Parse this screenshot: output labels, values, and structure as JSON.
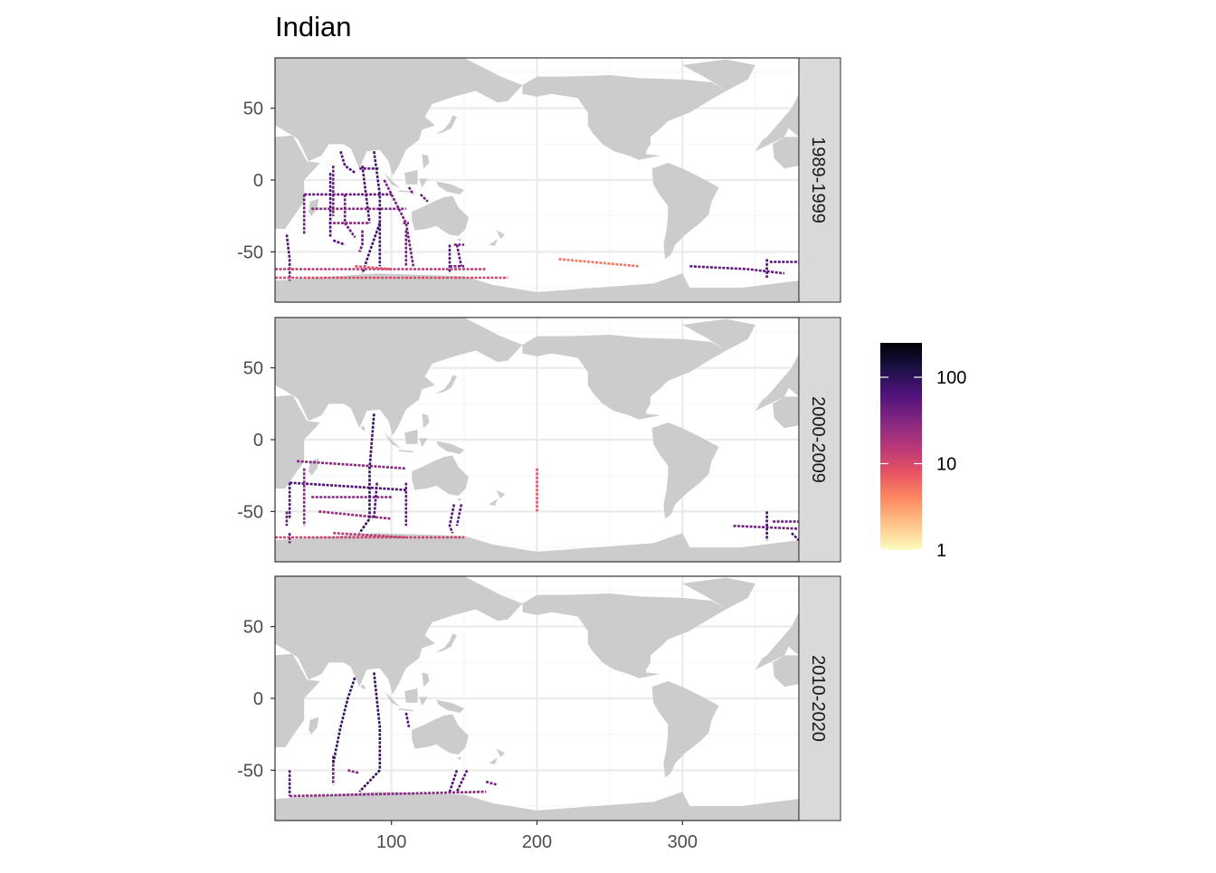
{
  "title": "Indian",
  "colors": {
    "land": "#cccccc",
    "grid_major": "#ebebeb",
    "strip_bg": "#d9d9d9",
    "panel_border": "#333333",
    "tick_text": "#4d4d4d",
    "scale": [
      "#000004",
      "#1d1147",
      "#51127c",
      "#832681",
      "#b73779",
      "#e75263",
      "#fc8961",
      "#fec488",
      "#fcfdbf"
    ]
  },
  "chart_data": {
    "type": "heatmap",
    "title": "Indian",
    "xlim": [
      20,
      380
    ],
    "ylim": [
      -85,
      85
    ],
    "x_ticks": [
      100,
      200,
      300
    ],
    "x_tick_labels": [
      "100",
      "200",
      "300"
    ],
    "y_ticks": [
      50,
      0,
      -50
    ],
    "y_tick_labels": [
      "50",
      "0",
      "-50"
    ],
    "facets": [
      "1989-1999",
      "2000-2009",
      "2010-2020"
    ],
    "legend": {
      "position": "right",
      "scale": "log",
      "range": [
        1,
        250
      ],
      "ticks": [
        100,
        10,
        1
      ],
      "tick_labels": [
        "100",
        "10",
        "1"
      ]
    },
    "tracks": [
      [
        {
          "points": [
            [
              30,
              -55
            ],
            [
              30,
              -70
            ]
          ],
          "value": 60
        },
        {
          "points": [
            [
              28,
              -38
            ],
            [
              30,
              -55
            ]
          ],
          "value": 60
        },
        {
          "points": [
            [
              40,
              -10
            ],
            [
              40,
              -38
            ]
          ],
          "value": 40
        },
        {
          "points": [
            [
              40,
              -10
            ],
            [
              100,
              -10
            ]
          ],
          "value": 50
        },
        {
          "points": [
            [
              45,
              -20
            ],
            [
              110,
              -20
            ]
          ],
          "value": 30
        },
        {
          "points": [
            [
              57,
              -30
            ],
            [
              85,
              -30
            ]
          ],
          "value": 25
        },
        {
          "points": [
            [
              58,
              5
            ],
            [
              58,
              -40
            ]
          ],
          "value": 70
        },
        {
          "points": [
            [
              60,
              10
            ],
            [
              60,
              -25
            ]
          ],
          "value": 40
        },
        {
          "points": [
            [
              65,
              20
            ],
            [
              68,
              10
            ],
            [
              75,
              5
            ]
          ],
          "value": 60
        },
        {
          "points": [
            [
              68,
              -10
            ],
            [
              68,
              -30
            ],
            [
              75,
              -40
            ]
          ],
          "value": 40
        },
        {
          "points": [
            [
              80,
              -35
            ],
            [
              80,
              -45
            ],
            [
              78,
              -50
            ]
          ],
          "value": 50
        },
        {
          "points": [
            [
              60,
              -42
            ],
            [
              68,
              -45
            ]
          ],
          "value": 60
        },
        {
          "points": [
            [
              78,
              8
            ],
            [
              92,
              8
            ]
          ],
          "value": 50
        },
        {
          "points": [
            [
              80,
              10
            ],
            [
              85,
              -30
            ]
          ],
          "value": 70
        },
        {
          "points": [
            [
              88,
              20
            ],
            [
              92,
              -10
            ],
            [
              92,
              -60
            ]
          ],
          "value": 80
        },
        {
          "points": [
            [
              92,
              -30
            ],
            [
              85,
              -50
            ],
            [
              80,
              -65
            ]
          ],
          "value": 80
        },
        {
          "points": [
            [
              95,
              0
            ],
            [
              110,
              -30
            ],
            [
              115,
              -60
            ]
          ],
          "value": 40
        },
        {
          "points": [
            [
              110,
              -35
            ],
            [
              110,
              -60
            ]
          ],
          "value": 40
        },
        {
          "points": [
            [
              108,
              -30
            ],
            [
              112,
              -30
            ]
          ],
          "value": 30
        },
        {
          "points": [
            [
              112,
              -5
            ],
            [
              115,
              -10
            ]
          ],
          "value": 40
        },
        {
          "points": [
            [
              120,
              -10
            ],
            [
              125,
              -15
            ]
          ],
          "value": 40
        },
        {
          "points": [
            [
              140,
              -45
            ],
            [
              140,
              -65
            ]
          ],
          "value": 60
        },
        {
          "points": [
            [
              145,
              -45
            ],
            [
              148,
              -60
            ]
          ],
          "value": 50
        },
        {
          "points": [
            [
              143,
              -45
            ],
            [
              150,
              -45
            ]
          ],
          "value": 40
        },
        {
          "points": [
            [
              140,
              -60
            ],
            [
              150,
              -60
            ]
          ],
          "value": 40
        },
        {
          "points": [
            [
              20,
              -62
            ],
            [
              165,
              -62
            ]
          ],
          "value": 15
        },
        {
          "points": [
            [
              20,
              -68
            ],
            [
              180,
              -68
            ]
          ],
          "value": 10
        },
        {
          "points": [
            [
              75,
              -60
            ],
            [
              100,
              -62
            ]
          ],
          "value": 8
        },
        {
          "points": [
            [
              215,
              -55
            ],
            [
              270,
              -60
            ]
          ],
          "value": 5
        },
        {
          "points": [
            [
              305,
              -60
            ],
            [
              345,
              -62
            ],
            [
              370,
              -65
            ]
          ],
          "value": 50
        },
        {
          "points": [
            [
              358,
              -55
            ],
            [
              358,
              -68
            ]
          ],
          "value": 70
        },
        {
          "points": [
            [
              360,
              -57
            ],
            [
              380,
              -57
            ]
          ],
          "value": 60
        }
      ],
      [
        {
          "points": [
            [
              30,
              -65
            ],
            [
              30,
              -72
            ]
          ],
          "value": 60
        },
        {
          "points": [
            [
              28,
              -50
            ],
            [
              28,
              -60
            ]
          ],
          "value": 50
        },
        {
          "points": [
            [
              30,
              -30
            ],
            [
              30,
              -55
            ]
          ],
          "value": 70
        },
        {
          "points": [
            [
              30,
              -30
            ],
            [
              110,
              -35
            ]
          ],
          "value": 70
        },
        {
          "points": [
            [
              35,
              -15
            ],
            [
              110,
              -20
            ]
          ],
          "value": 30
        },
        {
          "points": [
            [
              45,
              -40
            ],
            [
              100,
              -40
            ]
          ],
          "value": 30
        },
        {
          "points": [
            [
              50,
              -50
            ],
            [
              100,
              -55
            ]
          ],
          "value": 25
        },
        {
          "points": [
            [
              40,
              -20
            ],
            [
              40,
              -60
            ]
          ],
          "value": 30
        },
        {
          "points": [
            [
              88,
              18
            ],
            [
              85,
              -20
            ],
            [
              85,
              -55
            ],
            [
              78,
              -65
            ]
          ],
          "value": 90
        },
        {
          "points": [
            [
              90,
              -30
            ],
            [
              88,
              -55
            ]
          ],
          "value": 60
        },
        {
          "points": [
            [
              110,
              -30
            ],
            [
              110,
              -60
            ]
          ],
          "value": 50
        },
        {
          "points": [
            [
              143,
              -45
            ],
            [
              140,
              -60
            ],
            [
              142,
              -65
            ]
          ],
          "value": 60
        },
        {
          "points": [
            [
              148,
              -45
            ],
            [
              145,
              -60
            ]
          ],
          "value": 50
        },
        {
          "points": [
            [
              200,
              -20
            ],
            [
              200,
              -50
            ]
          ],
          "value": 8
        },
        {
          "points": [
            [
              60,
              -65
            ],
            [
              110,
              -68
            ]
          ],
          "value": 15
        },
        {
          "points": [
            [
              20,
              -68
            ],
            [
              150,
              -68
            ]
          ],
          "value": 12
        },
        {
          "points": [
            [
              335,
              -60
            ],
            [
              380,
              -62
            ]
          ],
          "value": 40
        },
        {
          "points": [
            [
              358,
              -50
            ],
            [
              358,
              -70
            ]
          ],
          "value": 80
        },
        {
          "points": [
            [
              362,
              -57
            ],
            [
              380,
              -57
            ]
          ],
          "value": 50
        },
        {
          "points": [
            [
              375,
              -65
            ],
            [
              380,
              -70
            ]
          ],
          "value": 70
        }
      ],
      [
        {
          "points": [
            [
              30,
              -50
            ],
            [
              30,
              -68
            ]
          ],
          "value": 70
        },
        {
          "points": [
            [
              30,
              -68
            ],
            [
              165,
              -65
            ]
          ],
          "value": 30
        },
        {
          "points": [
            [
              60,
              -40
            ],
            [
              60,
              -60
            ]
          ],
          "value": 40
        },
        {
          "points": [
            [
              60,
              -45
            ],
            [
              65,
              -20
            ],
            [
              70,
              0
            ],
            [
              75,
              15
            ]
          ],
          "value": 90
        },
        {
          "points": [
            [
              88,
              18
            ],
            [
              92,
              -20
            ],
            [
              92,
              -50
            ]
          ],
          "value": 90
        },
        {
          "points": [
            [
              92,
              -50
            ],
            [
              78,
              -65
            ]
          ],
          "value": 90
        },
        {
          "points": [
            [
              110,
              -10
            ],
            [
              112,
              -20
            ]
          ],
          "value": 60
        },
        {
          "points": [
            [
              70,
              -50
            ],
            [
              78,
              -52
            ]
          ],
          "value": 30
        },
        {
          "points": [
            [
              145,
              -50
            ],
            [
              140,
              -65
            ]
          ],
          "value": 70
        },
        {
          "points": [
            [
              152,
              -50
            ],
            [
              145,
              -65
            ]
          ],
          "value": 60
        },
        {
          "points": [
            [
              165,
              -58
            ],
            [
              172,
              -60
            ]
          ],
          "value": 40
        }
      ]
    ]
  }
}
